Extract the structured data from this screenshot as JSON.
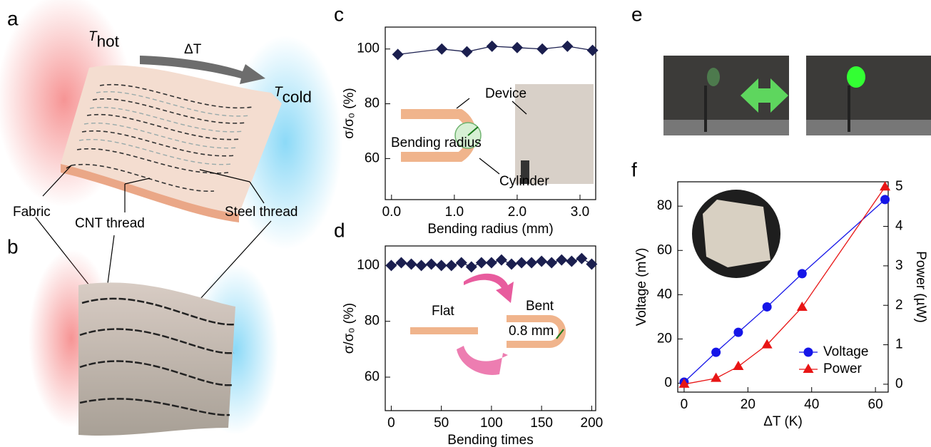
{
  "panel_labels": [
    "a",
    "b",
    "c",
    "d",
    "e",
    "f"
  ],
  "illustration": {
    "hot": {
      "symbol": "T",
      "subscript": "hot"
    },
    "delta": "ΔT",
    "cold": {
      "symbol": "T",
      "subscript": "cold"
    },
    "labels": [
      "Fabric",
      "CNT thread",
      "Steel thread"
    ]
  },
  "chart_data": [
    {
      "type": "line",
      "xlabel": "Bending radius (mm)",
      "ylabel": "σ/σ₀ (%)",
      "x": [
        0.1,
        0.8,
        1.2,
        1.6,
        2.0,
        2.4,
        2.8,
        3.2
      ],
      "series": [
        {
          "color": "#1b1f4f",
          "marker": "diamond",
          "values": [
            98,
            100,
            99,
            101,
            100.5,
            100,
            101,
            99.5
          ]
        }
      ],
      "xlim": [
        -0.1,
        3.25
      ],
      "ylim": [
        45,
        108
      ],
      "xticks": [
        {
          "value": 0,
          "label": "0.0"
        },
        {
          "value": 1,
          "label": "1.0"
        },
        {
          "value": 2,
          "label": "2.0"
        },
        {
          "value": 3,
          "label": "3.0"
        }
      ],
      "yticks": [
        60,
        80,
        100
      ],
      "annotations": [
        "Device",
        "Cylinder",
        "Bending radius"
      ]
    },
    {
      "type": "line",
      "xlabel": "Bending times",
      "ylabel": "σ/σ₀ (%)",
      "x": [
        0,
        10,
        20,
        30,
        40,
        50,
        60,
        70,
        80,
        90,
        100,
        110,
        120,
        130,
        140,
        150,
        160,
        170,
        180,
        190,
        200
      ],
      "series": [
        {
          "color": "#1b1f4f",
          "marker": "diamond",
          "values": [
            100,
            101,
            100.5,
            100,
            100.5,
            100,
            100,
            101,
            99.5,
            101,
            101,
            102,
            100.5,
            101,
            101,
            101.5,
            101,
            102,
            101.5,
            102.5,
            100.5
          ]
        }
      ],
      "xlim": [
        -6,
        204
      ],
      "ylim": [
        48,
        107
      ],
      "xticks": [
        0,
        50,
        100,
        150,
        200
      ],
      "yticks": [
        60,
        80,
        100
      ],
      "annotations": [
        "Flat",
        "Bent",
        "0.8 mm"
      ]
    },
    {
      "type": "line",
      "xlabel": "ΔT (K)",
      "ylabel": "Voltage (mV)",
      "y2label": "Power (µW)",
      "x": [
        0,
        10,
        17,
        26,
        37,
        63
      ],
      "series": [
        {
          "name": "Voltage",
          "color": "#1515e8",
          "marker": "circle",
          "values": [
            0.5,
            14,
            23,
            34.5,
            49.5,
            83
          ]
        },
        {
          "name": "Power",
          "color": "#e81515",
          "marker": "triangle",
          "axis": "y2",
          "values": [
            0,
            0.15,
            0.45,
            1.0,
            1.95,
            5.0
          ]
        }
      ],
      "xlim": [
        -2,
        64
      ],
      "ylim": [
        -4,
        91
      ],
      "y2lim": [
        -0.2,
        5.13
      ],
      "xticks": [
        0,
        20,
        40,
        60
      ],
      "yticks": [
        0,
        20,
        40,
        60,
        80
      ],
      "y2ticks": [
        0,
        1,
        2,
        3,
        4,
        5
      ],
      "legend": "lower right"
    }
  ]
}
